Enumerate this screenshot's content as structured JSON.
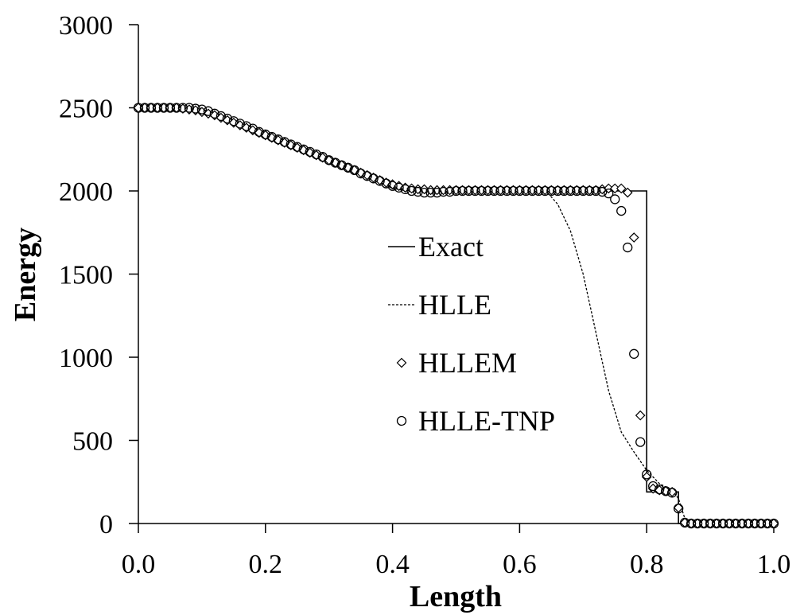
{
  "chart_data": {
    "type": "line",
    "xlabel": "Length",
    "ylabel": "Energy",
    "xlim": [
      0.0,
      1.0
    ],
    "ylim": [
      0,
      3000
    ],
    "xticks": [
      "0.0",
      "0.2",
      "0.4",
      "0.6",
      "0.8",
      "1.0"
    ],
    "yticks": [
      "0",
      "500",
      "1000",
      "1500",
      "2000",
      "2500",
      "3000"
    ],
    "grid": false,
    "legend_position": "center",
    "series": [
      {
        "name": "Exact",
        "style": "solid",
        "points": [
          [
            0.0,
            2500
          ],
          [
            0.08,
            2500
          ],
          [
            0.1,
            2490
          ],
          [
            0.12,
            2465
          ],
          [
            0.15,
            2420
          ],
          [
            0.2,
            2340
          ],
          [
            0.25,
            2265
          ],
          [
            0.3,
            2185
          ],
          [
            0.35,
            2105
          ],
          [
            0.38,
            2055
          ],
          [
            0.4,
            2015
          ],
          [
            0.42,
            2005
          ],
          [
            0.44,
            2000
          ],
          [
            0.8,
            2000
          ],
          [
            0.8,
            190
          ],
          [
            0.85,
            190
          ],
          [
            0.85,
            0
          ],
          [
            1.0,
            0
          ]
        ]
      },
      {
        "name": "HLLE",
        "style": "dashed",
        "points": [
          [
            0.0,
            2500
          ],
          [
            0.08,
            2500
          ],
          [
            0.1,
            2485
          ],
          [
            0.12,
            2460
          ],
          [
            0.15,
            2420
          ],
          [
            0.2,
            2340
          ],
          [
            0.25,
            2265
          ],
          [
            0.3,
            2185
          ],
          [
            0.35,
            2105
          ],
          [
            0.4,
            2030
          ],
          [
            0.44,
            1995
          ],
          [
            0.47,
            1985
          ],
          [
            0.5,
            1995
          ],
          [
            0.55,
            2000
          ],
          [
            0.63,
            2000
          ],
          [
            0.645,
            1985
          ],
          [
            0.66,
            1920
          ],
          [
            0.68,
            1760
          ],
          [
            0.7,
            1500
          ],
          [
            0.72,
            1150
          ],
          [
            0.74,
            800
          ],
          [
            0.76,
            550
          ],
          [
            0.78,
            430
          ],
          [
            0.8,
            320
          ],
          [
            0.82,
            240
          ],
          [
            0.84,
            200
          ],
          [
            0.85,
            150
          ],
          [
            0.86,
            30
          ],
          [
            0.87,
            5
          ],
          [
            1.0,
            0
          ]
        ]
      },
      {
        "name": "HLLEM",
        "style": "diamond",
        "points": [
          [
            0.0,
            2500
          ],
          [
            0.01,
            2500
          ],
          [
            0.02,
            2500
          ],
          [
            0.03,
            2500
          ],
          [
            0.04,
            2500
          ],
          [
            0.05,
            2500
          ],
          [
            0.06,
            2500
          ],
          [
            0.07,
            2495
          ],
          [
            0.08,
            2490
          ],
          [
            0.09,
            2485
          ],
          [
            0.1,
            2475
          ],
          [
            0.11,
            2465
          ],
          [
            0.12,
            2455
          ],
          [
            0.13,
            2440
          ],
          [
            0.14,
            2425
          ],
          [
            0.15,
            2410
          ],
          [
            0.16,
            2395
          ],
          [
            0.17,
            2380
          ],
          [
            0.18,
            2365
          ],
          [
            0.19,
            2350
          ],
          [
            0.2,
            2335
          ],
          [
            0.21,
            2320
          ],
          [
            0.22,
            2305
          ],
          [
            0.23,
            2290
          ],
          [
            0.24,
            2275
          ],
          [
            0.25,
            2260
          ],
          [
            0.26,
            2245
          ],
          [
            0.27,
            2230
          ],
          [
            0.28,
            2215
          ],
          [
            0.29,
            2200
          ],
          [
            0.3,
            2185
          ],
          [
            0.31,
            2170
          ],
          [
            0.32,
            2155
          ],
          [
            0.33,
            2140
          ],
          [
            0.34,
            2125
          ],
          [
            0.35,
            2110
          ],
          [
            0.36,
            2095
          ],
          [
            0.37,
            2080
          ],
          [
            0.38,
            2065
          ],
          [
            0.39,
            2050
          ],
          [
            0.4,
            2040
          ],
          [
            0.41,
            2030
          ],
          [
            0.42,
            2020
          ],
          [
            0.43,
            2015
          ],
          [
            0.44,
            2010
          ],
          [
            0.45,
            2010
          ],
          [
            0.46,
            2005
          ],
          [
            0.47,
            2005
          ],
          [
            0.48,
            2005
          ],
          [
            0.49,
            2005
          ],
          [
            0.5,
            2005
          ],
          [
            0.51,
            2005
          ],
          [
            0.52,
            2005
          ],
          [
            0.53,
            2005
          ],
          [
            0.54,
            2005
          ],
          [
            0.55,
            2005
          ],
          [
            0.56,
            2005
          ],
          [
            0.57,
            2005
          ],
          [
            0.58,
            2005
          ],
          [
            0.59,
            2005
          ],
          [
            0.6,
            2005
          ],
          [
            0.61,
            2005
          ],
          [
            0.62,
            2005
          ],
          [
            0.63,
            2005
          ],
          [
            0.64,
            2005
          ],
          [
            0.65,
            2005
          ],
          [
            0.66,
            2005
          ],
          [
            0.67,
            2005
          ],
          [
            0.68,
            2005
          ],
          [
            0.69,
            2005
          ],
          [
            0.7,
            2005
          ],
          [
            0.71,
            2005
          ],
          [
            0.72,
            2005
          ],
          [
            0.73,
            2010
          ],
          [
            0.74,
            2015
          ],
          [
            0.75,
            2015
          ],
          [
            0.76,
            2015
          ],
          [
            0.77,
            1990
          ],
          [
            0.78,
            1720
          ],
          [
            0.79,
            650
          ],
          [
            0.8,
            280
          ],
          [
            0.81,
            210
          ],
          [
            0.82,
            200
          ],
          [
            0.83,
            195
          ],
          [
            0.84,
            190
          ],
          [
            0.85,
            95
          ],
          [
            0.86,
            5
          ],
          [
            0.87,
            0
          ],
          [
            0.88,
            0
          ],
          [
            0.89,
            0
          ],
          [
            0.9,
            0
          ],
          [
            0.91,
            0
          ],
          [
            0.92,
            0
          ],
          [
            0.93,
            0
          ],
          [
            0.94,
            0
          ],
          [
            0.95,
            0
          ],
          [
            0.96,
            0
          ],
          [
            0.97,
            0
          ],
          [
            0.98,
            0
          ],
          [
            0.99,
            0
          ],
          [
            1.0,
            0
          ]
        ]
      },
      {
        "name": "HLLE-TNP",
        "style": "circle",
        "points": [
          [
            0.0,
            2500
          ],
          [
            0.01,
            2500
          ],
          [
            0.02,
            2500
          ],
          [
            0.03,
            2500
          ],
          [
            0.04,
            2500
          ],
          [
            0.05,
            2500
          ],
          [
            0.06,
            2500
          ],
          [
            0.07,
            2500
          ],
          [
            0.08,
            2500
          ],
          [
            0.09,
            2495
          ],
          [
            0.1,
            2490
          ],
          [
            0.11,
            2480
          ],
          [
            0.12,
            2465
          ],
          [
            0.13,
            2450
          ],
          [
            0.14,
            2435
          ],
          [
            0.15,
            2420
          ],
          [
            0.16,
            2405
          ],
          [
            0.17,
            2390
          ],
          [
            0.18,
            2375
          ],
          [
            0.19,
            2355
          ],
          [
            0.2,
            2340
          ],
          [
            0.21,
            2325
          ],
          [
            0.22,
            2310
          ],
          [
            0.23,
            2295
          ],
          [
            0.24,
            2280
          ],
          [
            0.25,
            2265
          ],
          [
            0.26,
            2250
          ],
          [
            0.27,
            2235
          ],
          [
            0.28,
            2220
          ],
          [
            0.29,
            2205
          ],
          [
            0.3,
            2185
          ],
          [
            0.31,
            2170
          ],
          [
            0.32,
            2155
          ],
          [
            0.33,
            2140
          ],
          [
            0.34,
            2125
          ],
          [
            0.35,
            2105
          ],
          [
            0.36,
            2090
          ],
          [
            0.37,
            2075
          ],
          [
            0.38,
            2060
          ],
          [
            0.39,
            2045
          ],
          [
            0.4,
            2030
          ],
          [
            0.41,
            2020
          ],
          [
            0.42,
            2010
          ],
          [
            0.43,
            2000
          ],
          [
            0.44,
            1995
          ],
          [
            0.45,
            1990
          ],
          [
            0.46,
            1990
          ],
          [
            0.47,
            1990
          ],
          [
            0.48,
            1995
          ],
          [
            0.49,
            1995
          ],
          [
            0.5,
            2000
          ],
          [
            0.51,
            2000
          ],
          [
            0.52,
            2000
          ],
          [
            0.53,
            2000
          ],
          [
            0.54,
            2000
          ],
          [
            0.55,
            2000
          ],
          [
            0.56,
            2000
          ],
          [
            0.57,
            2000
          ],
          [
            0.58,
            2000
          ],
          [
            0.59,
            2000
          ],
          [
            0.6,
            2000
          ],
          [
            0.61,
            2000
          ],
          [
            0.62,
            2000
          ],
          [
            0.63,
            2000
          ],
          [
            0.64,
            2000
          ],
          [
            0.65,
            2000
          ],
          [
            0.66,
            2000
          ],
          [
            0.67,
            2000
          ],
          [
            0.68,
            2000
          ],
          [
            0.69,
            2000
          ],
          [
            0.7,
            2000
          ],
          [
            0.71,
            2000
          ],
          [
            0.72,
            2000
          ],
          [
            0.73,
            1995
          ],
          [
            0.74,
            1985
          ],
          [
            0.75,
            1950
          ],
          [
            0.76,
            1880
          ],
          [
            0.77,
            1660
          ],
          [
            0.78,
            1020
          ],
          [
            0.79,
            490
          ],
          [
            0.8,
            295
          ],
          [
            0.81,
            225
          ],
          [
            0.82,
            205
          ],
          [
            0.83,
            195
          ],
          [
            0.84,
            185
          ],
          [
            0.85,
            90
          ],
          [
            0.86,
            5
          ],
          [
            0.87,
            0
          ],
          [
            0.88,
            0
          ],
          [
            0.89,
            0
          ],
          [
            0.9,
            0
          ],
          [
            0.91,
            0
          ],
          [
            0.92,
            0
          ],
          [
            0.93,
            0
          ],
          [
            0.94,
            0
          ],
          [
            0.95,
            0
          ],
          [
            0.96,
            0
          ],
          [
            0.97,
            0
          ],
          [
            0.98,
            0
          ],
          [
            0.99,
            0
          ],
          [
            1.0,
            0
          ]
        ]
      }
    ]
  }
}
